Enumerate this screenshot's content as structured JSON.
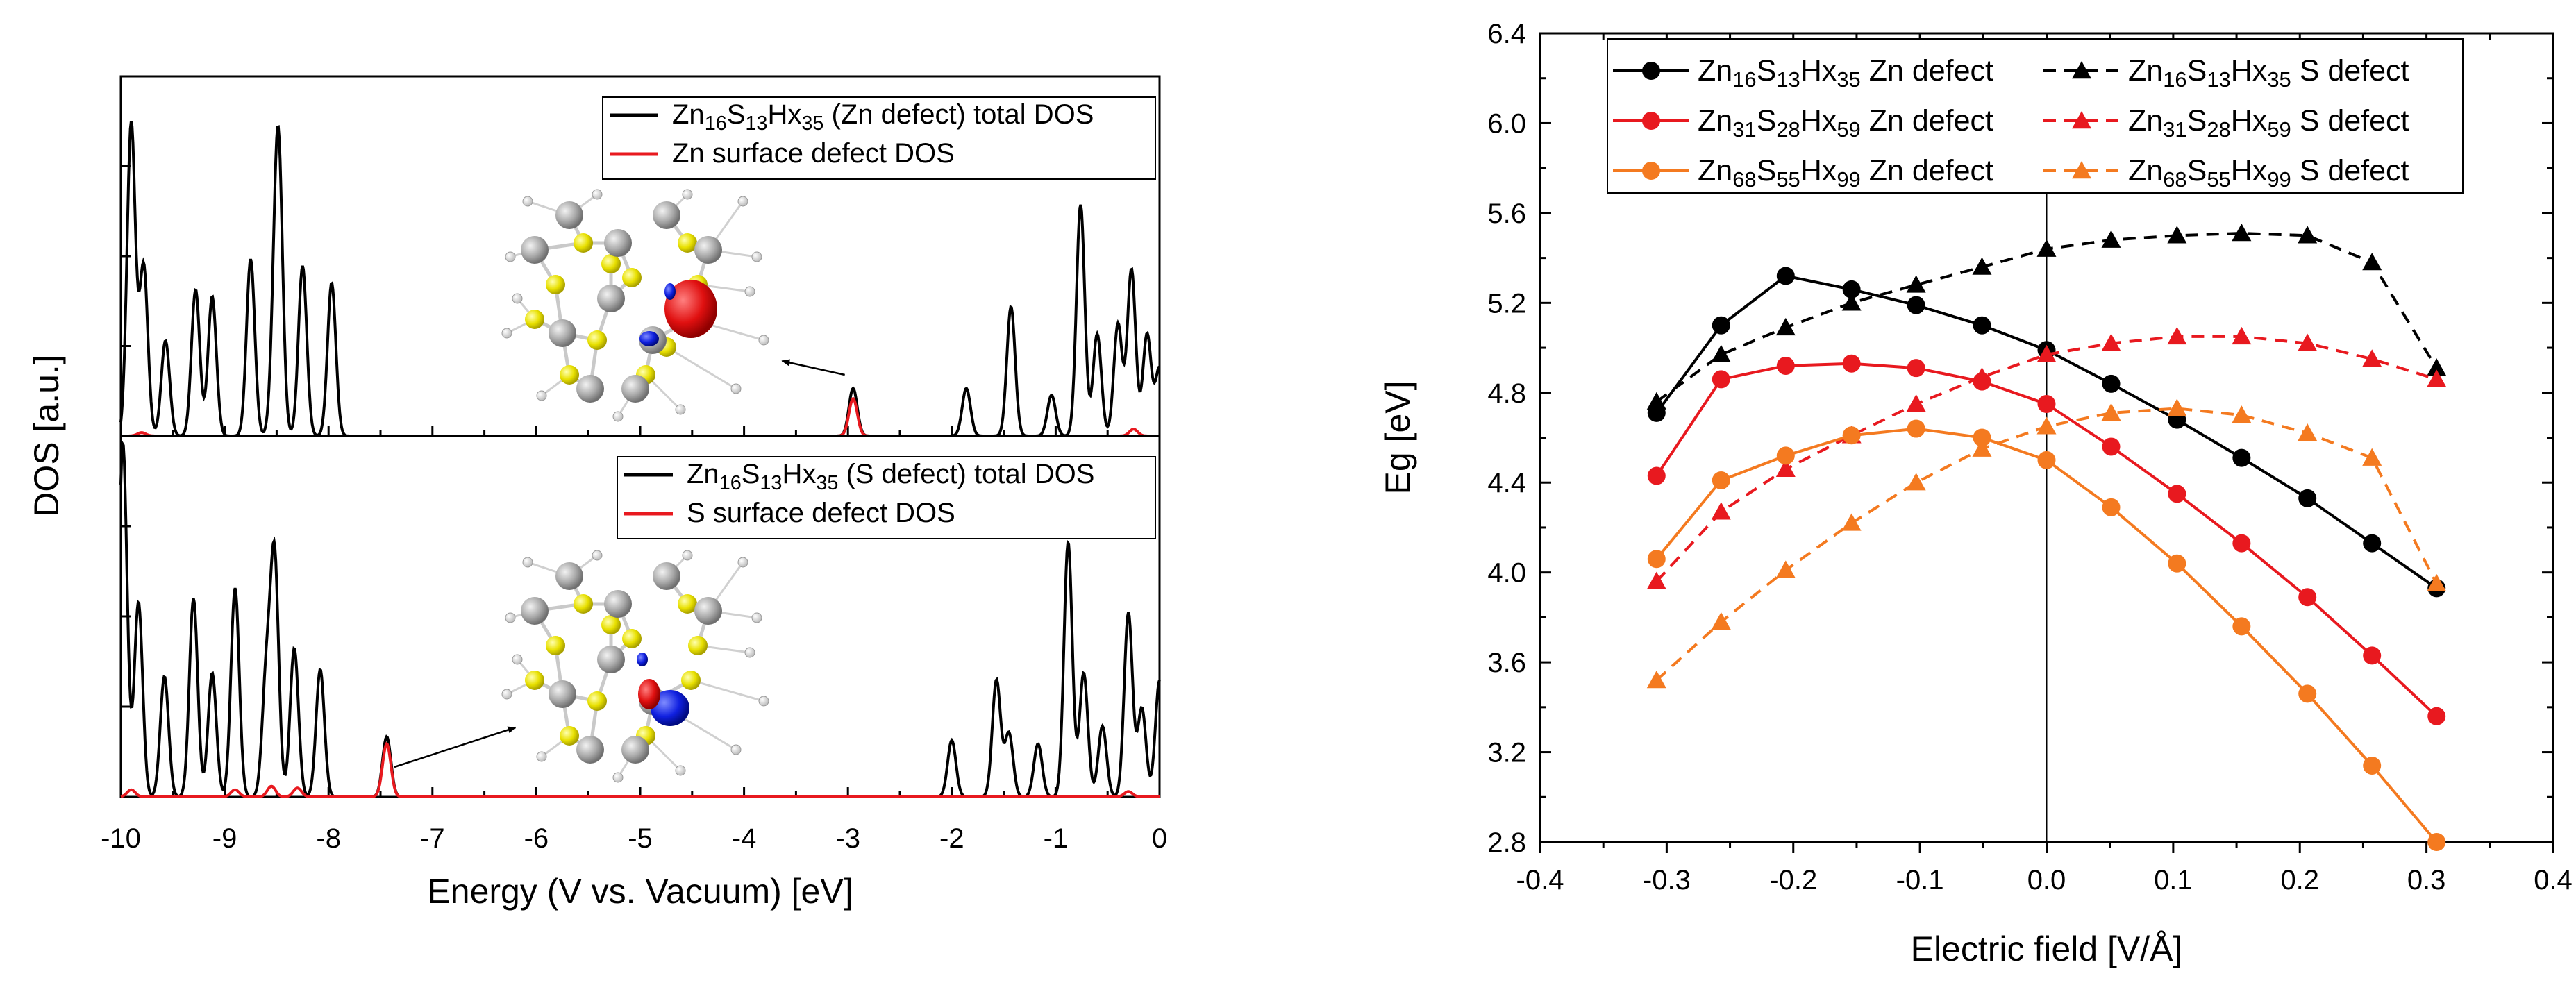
{
  "chart_data": [
    {
      "type": "line",
      "panel": "left",
      "xlabel": "Energy (V vs. Vacuum) [eV]",
      "ylabel": "DOS [a.u.]",
      "xlim": [
        -10,
        0
      ],
      "xticks": [
        "-10",
        "-9",
        "-8",
        "-7",
        "-6",
        "-5",
        "-4",
        "-3",
        "-2",
        "-1",
        "0"
      ],
      "subplots": [
        {
          "legend": [
            {
              "name": "Zn16S13Hx35 (Zn defect) total DOS",
              "parts": [
                {
                  "t": "Zn"
                },
                {
                  "t": "16",
                  "sub": true
                },
                {
                  "t": "S"
                },
                {
                  "t": "13",
                  "sub": true
                },
                {
                  "t": "Hx"
                },
                {
                  "t": "35",
                  "sub": true
                },
                {
                  "t": " (Zn defect) total DOS"
                }
              ],
              "color": "#000000"
            },
            {
              "name": "Zn surface defect DOS",
              "parts": [
                {
                  "t": "Zn surface defect DOS"
                }
              ],
              "color": "#e8191f"
            }
          ],
          "total_peaks": [
            {
              "e": -9.9,
              "h": 0.92
            },
            {
              "e": -9.78,
              "h": 0.5
            },
            {
              "e": -9.57,
              "h": 0.28
            },
            {
              "e": -9.28,
              "h": 0.43
            },
            {
              "e": -9.12,
              "h": 0.41
            },
            {
              "e": -8.75,
              "h": 0.52
            },
            {
              "e": -8.52,
              "h": 0.23
            },
            {
              "e": -8.48,
              "h": 0.76
            },
            {
              "e": -8.25,
              "h": 0.5
            },
            {
              "e": -7.97,
              "h": 0.45
            },
            {
              "e": -2.95,
              "h": 0.14
            },
            {
              "e": -1.86,
              "h": 0.14
            },
            {
              "e": -1.43,
              "h": 0.38
            },
            {
              "e": -1.04,
              "h": 0.12
            },
            {
              "e": -0.76,
              "h": 0.68
            },
            {
              "e": -0.6,
              "h": 0.3
            },
            {
              "e": -0.4,
              "h": 0.33
            },
            {
              "e": -0.27,
              "h": 0.49
            },
            {
              "e": -0.12,
              "h": 0.3
            },
            {
              "e": 0.0,
              "h": 0.2
            }
          ],
          "defect_peaks": [
            {
              "e": -9.8,
              "h": 0.01
            },
            {
              "e": -2.95,
              "h": 0.11
            },
            {
              "e": -0.25,
              "h": 0.02
            }
          ],
          "annotation_target_energy": -3.3
        },
        {
          "legend": [
            {
              "name": "Zn16S13Hx35 (S defect) total DOS",
              "parts": [
                {
                  "t": "Zn"
                },
                {
                  "t": "16",
                  "sub": true
                },
                {
                  "t": "S"
                },
                {
                  "t": "13",
                  "sub": true
                },
                {
                  "t": "Hx"
                },
                {
                  "t": "35",
                  "sub": true
                },
                {
                  "t": " (S defect) total DOS"
                }
              ],
              "color": "#000000"
            },
            {
              "name": "S surface defect DOS",
              "parts": [
                {
                  "t": "S surface defect DOS"
                }
              ],
              "color": "#e8191f"
            }
          ],
          "total_peaks": [
            {
              "e": -9.98,
              "h": 1.0
            },
            {
              "e": -9.83,
              "h": 0.55
            },
            {
              "e": -9.58,
              "h": 0.34
            },
            {
              "e": -9.3,
              "h": 0.56
            },
            {
              "e": -9.12,
              "h": 0.35
            },
            {
              "e": -8.9,
              "h": 0.59
            },
            {
              "e": -8.6,
              "h": 0.33
            },
            {
              "e": -8.52,
              "h": 0.67
            },
            {
              "e": -8.33,
              "h": 0.42
            },
            {
              "e": -8.08,
              "h": 0.36
            },
            {
              "e": -7.44,
              "h": 0.17
            },
            {
              "e": -2.0,
              "h": 0.16
            },
            {
              "e": -1.57,
              "h": 0.33
            },
            {
              "e": -1.45,
              "h": 0.18
            },
            {
              "e": -1.17,
              "h": 0.15
            },
            {
              "e": -0.88,
              "h": 0.72
            },
            {
              "e": -0.73,
              "h": 0.35
            },
            {
              "e": -0.55,
              "h": 0.2
            },
            {
              "e": -0.3,
              "h": 0.52
            },
            {
              "e": -0.17,
              "h": 0.25
            },
            {
              "e": 0.0,
              "h": 0.33
            }
          ],
          "defect_peaks": [
            {
              "e": -9.9,
              "h": 0.02
            },
            {
              "e": -8.9,
              "h": 0.02
            },
            {
              "e": -8.55,
              "h": 0.03
            },
            {
              "e": -8.3,
              "h": 0.025
            },
            {
              "e": -7.44,
              "h": 0.15
            },
            {
              "e": -0.3,
              "h": 0.015
            }
          ],
          "annotation_start_energy": -7.4,
          "annotation_target_energy": -6.2
        }
      ]
    },
    {
      "type": "line",
      "panel": "right",
      "xlabel": "Electric field [V/Å]",
      "ylabel": "Eg [eV]",
      "xlim": [
        -0.4,
        0.4
      ],
      "ylim": [
        2.8,
        6.4
      ],
      "xticks": [
        "-0.4",
        "-0.3",
        "-0.2",
        "-0.1",
        "0.0",
        "0.1",
        "0.2",
        "0.3",
        "0.4"
      ],
      "yticks": [
        "2.8",
        "3.2",
        "3.6",
        "4.0",
        "4.4",
        "4.8",
        "5.2",
        "5.6",
        "6.0",
        "6.4"
      ],
      "x": [
        -0.308,
        -0.257,
        -0.206,
        -0.154,
        -0.103,
        -0.051,
        0.0,
        0.051,
        0.103,
        0.154,
        0.206,
        0.257,
        0.308
      ],
      "series": [
        {
          "name": "Zn16S13Hx35 Zn defect",
          "pre": [
            "Zn",
            "16",
            "S",
            "13",
            "Hx",
            "35"
          ],
          "suffix": " Zn defect",
          "color": "#000000",
          "dash": false,
          "marker": "circle",
          "values": [
            4.71,
            5.1,
            5.32,
            5.26,
            5.19,
            5.1,
            4.99,
            4.84,
            4.68,
            4.51,
            4.33,
            4.13,
            3.93
          ]
        },
        {
          "name": "Zn16S13Hx35 S defect",
          "pre": [
            "Zn",
            "16",
            "S",
            "13",
            "Hx",
            "35"
          ],
          "suffix": " S defect",
          "color": "#000000",
          "dash": true,
          "marker": "triangle",
          "values": [
            4.76,
            4.97,
            5.09,
            5.2,
            5.28,
            5.36,
            5.44,
            5.48,
            5.5,
            5.51,
            5.5,
            5.38,
            4.91
          ]
        },
        {
          "name": "Zn31S28Hx59 Zn defect",
          "pre": [
            "Zn",
            "31",
            "S",
            "28",
            "Hx",
            "59"
          ],
          "suffix": " Zn defect",
          "color": "#e8191f",
          "dash": false,
          "marker": "circle",
          "values": [
            4.43,
            4.86,
            4.92,
            4.93,
            4.91,
            4.85,
            4.75,
            4.56,
            4.35,
            4.13,
            3.89,
            3.63,
            3.36
          ]
        },
        {
          "name": "Zn31S28Hx59 S defect",
          "pre": [
            "Zn",
            "31",
            "S",
            "28",
            "Hx",
            "59"
          ],
          "suffix": " S defect",
          "color": "#e8191f",
          "dash": true,
          "marker": "triangle",
          "values": [
            3.96,
            4.27,
            4.46,
            4.61,
            4.75,
            4.87,
            4.97,
            5.02,
            5.05,
            5.05,
            5.02,
            4.95,
            4.86
          ]
        },
        {
          "name": "Zn68S55Hx99 Zn defect",
          "pre": [
            "Zn",
            "68",
            "S",
            "55",
            "Hx",
            "99"
          ],
          "suffix": " Zn defect",
          "color": "#f47a20",
          "dash": false,
          "marker": "circle",
          "values": [
            4.06,
            4.41,
            4.52,
            4.61,
            4.64,
            4.6,
            4.5,
            4.29,
            4.04,
            3.76,
            3.46,
            3.14,
            2.8
          ]
        },
        {
          "name": "Zn68S55Hx99 S defect",
          "pre": [
            "Zn",
            "68",
            "S",
            "55",
            "Hx",
            "99"
          ],
          "suffix": " S defect",
          "color": "#f47a20",
          "dash": true,
          "marker": "triangle",
          "values": [
            3.52,
            3.78,
            4.01,
            4.22,
            4.4,
            4.55,
            4.65,
            4.71,
            4.73,
            4.7,
            4.62,
            4.51,
            3.95
          ]
        }
      ]
    }
  ]
}
